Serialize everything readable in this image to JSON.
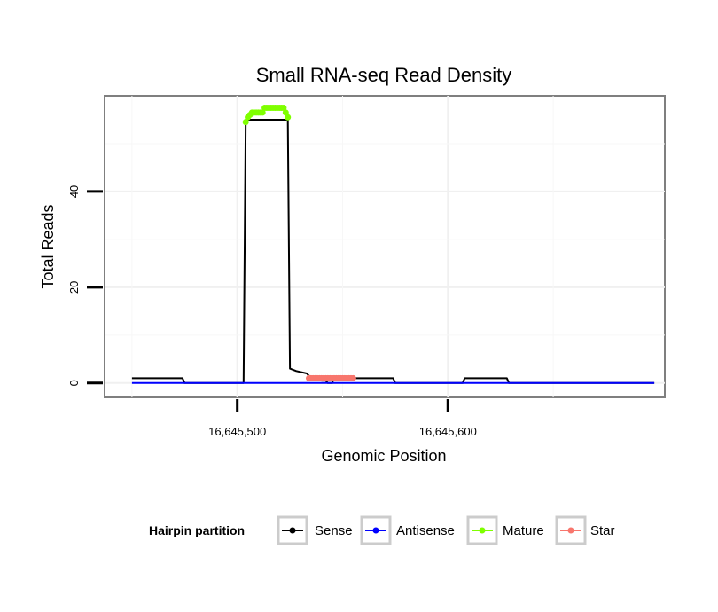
{
  "chart_data": {
    "type": "line",
    "title": "Small RNA-seq Read Density",
    "xlabel": "Genomic Position",
    "ylabel": "Total Reads",
    "xlim": [
      16645437,
      16645703
    ],
    "ylim": [
      -3,
      60
    ],
    "x_ticks": [
      {
        "value": 16645500,
        "label": "16,645,500"
      },
      {
        "value": 16645600,
        "label": "16,645,600"
      }
    ],
    "y_ticks": [
      {
        "value": 0,
        "label": "0"
      },
      {
        "value": 20,
        "label": "20"
      },
      {
        "value": 40,
        "label": "40"
      }
    ],
    "grid": true,
    "legend_position": "bottom",
    "legend_title": "Hairpin partition",
    "series": [
      {
        "name": "Sense",
        "color": "#000000",
        "markers": false,
        "x": [
          16645450,
          16645474,
          16645475,
          16645503,
          16645504,
          16645524,
          16645525,
          16645528,
          16645533,
          16645534,
          16645539,
          16645540,
          16645542,
          16645543,
          16645545,
          16645546,
          16645574,
          16645575,
          16645607,
          16645608,
          16645628,
          16645629,
          16645698
        ],
        "y": [
          1,
          1,
          0,
          0,
          55,
          55,
          3,
          2.5,
          2,
          1.5,
          1,
          0.5,
          0.5,
          0,
          0,
          1,
          1,
          0,
          0,
          1,
          1,
          0,
          0
        ]
      },
      {
        "name": "Antisense",
        "color": "#0000FF",
        "markers": false,
        "x": [
          16645450,
          16645698
        ],
        "y": [
          0,
          0
        ]
      },
      {
        "name": "Mature",
        "color": "#7FFF00",
        "markers": true,
        "x": [
          16645504,
          16645505,
          16645506,
          16645507,
          16645508,
          16645509,
          16645510,
          16645511,
          16645512,
          16645513,
          16645514,
          16645515,
          16645516,
          16645517,
          16645518,
          16645519,
          16645520,
          16645521,
          16645522,
          16645523,
          16645524
        ],
        "y": [
          54.5,
          55.5,
          56,
          56.5,
          56.5,
          56.5,
          56.5,
          56.5,
          56.5,
          57.5,
          57.5,
          57.5,
          57.5,
          57.5,
          57.5,
          57.5,
          57.5,
          57.5,
          57.5,
          56.5,
          55.5
        ]
      },
      {
        "name": "Star",
        "color": "#F8766D",
        "markers": true,
        "x": [
          16645534,
          16645535,
          16645536,
          16645537,
          16645538,
          16645539,
          16645540,
          16645541,
          16645542,
          16645543,
          16645544,
          16645545,
          16645546,
          16645547,
          16645548,
          16645549,
          16645550,
          16645551,
          16645552,
          16645553,
          16645554,
          16645555
        ],
        "y": [
          1,
          1,
          1,
          1,
          1,
          1,
          1,
          1,
          1,
          1,
          1,
          1,
          1,
          1,
          1,
          1,
          1,
          1,
          1,
          1,
          1,
          1
        ]
      }
    ]
  }
}
